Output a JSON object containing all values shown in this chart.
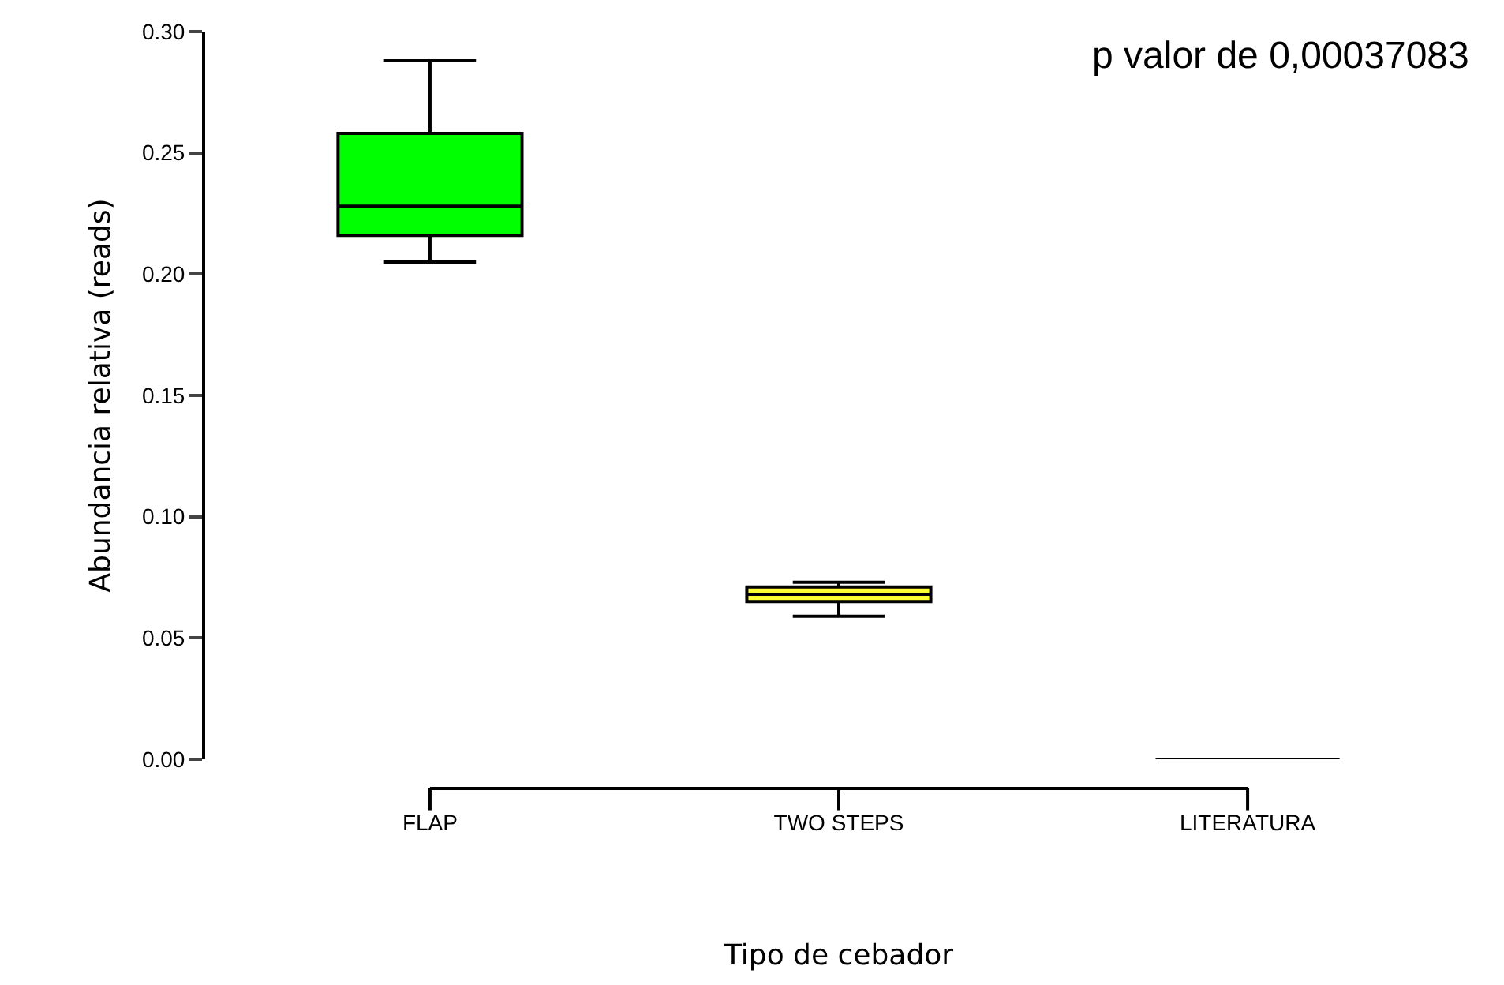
{
  "chart_data": {
    "type": "box",
    "xlabel": "Tipo de cebador",
    "ylabel": "Abundancia relativa (reads)",
    "categories": [
      "FLAP",
      "TWO STEPS",
      "LITERATURA"
    ],
    "boxes": [
      {
        "low": 0.205,
        "q1": 0.216,
        "median": 0.228,
        "q3": 0.258,
        "high": 0.288
      },
      {
        "low": 0.059,
        "q1": 0.065,
        "median": 0.068,
        "q3": 0.071,
        "high": 0.073
      },
      {
        "low": 0,
        "q1": 0,
        "median": 0,
        "q3": 0,
        "high": 0
      }
    ],
    "colors": [
      "#00ff00",
      "#ffff33",
      "#000000"
    ],
    "ylim": [
      0,
      0.3
    ],
    "yticks": [
      {
        "value": 0,
        "label": "0.00"
      },
      {
        "value": 0.05,
        "label": "0.05"
      },
      {
        "value": 0.1,
        "label": "0.10"
      },
      {
        "value": 0.15,
        "label": "0.15"
      },
      {
        "value": 0.2,
        "label": "0.20"
      },
      {
        "value": 0.25,
        "label": "0.25"
      },
      {
        "value": 0.3,
        "label": "0.30"
      }
    ],
    "legend": false,
    "annotations": [
      "p valor de 0,00037083"
    ]
  }
}
